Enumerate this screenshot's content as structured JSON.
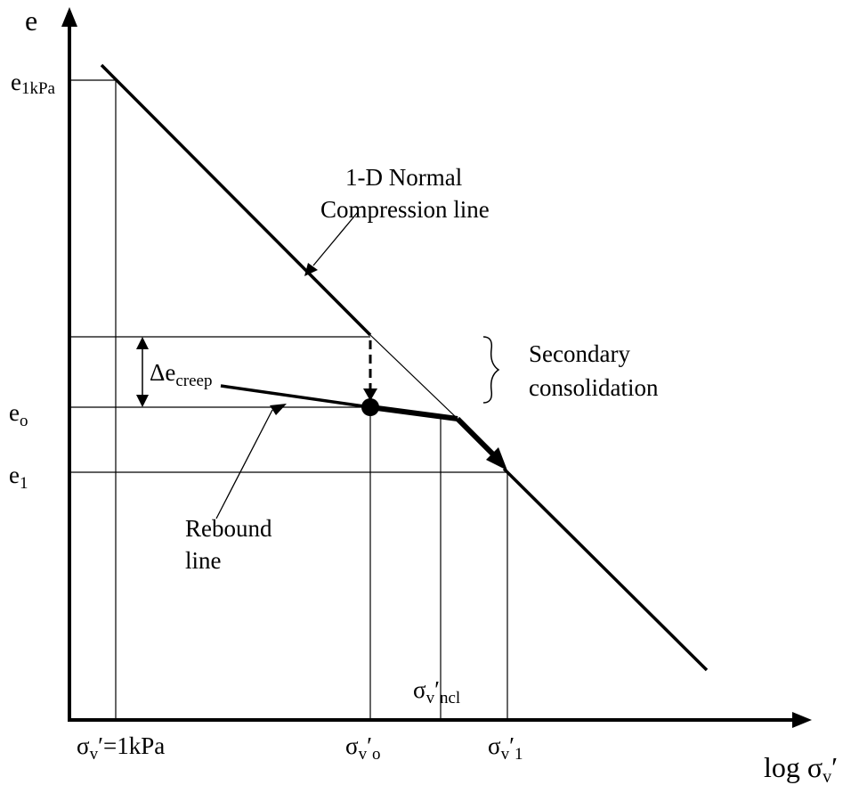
{
  "axes": {
    "y_label": "e",
    "x_label_prefix": "log",
    "x_label_sigma": "σ",
    "x_label_sub": "v",
    "x_label_prime": "′"
  },
  "y_ticks": {
    "e1kpa_main": "e",
    "e1kpa_sub": "1kPa",
    "eo_main": "e",
    "eo_sub": "o",
    "e1_main": "e",
    "e1_sub": "1"
  },
  "x_ticks": {
    "one_kpa_sigma": "σ",
    "one_kpa_sub": "v",
    "one_kpa_rest": "′=1kPa",
    "o_sigma": "σ",
    "o_sub": "v",
    "o_prime": "′",
    "o_sub2": "o",
    "one_sigma": "σ",
    "one_sub": "v",
    "one_prime": "′",
    "one_sub2": "1",
    "ncl_sigma": "σ",
    "ncl_sub": "v",
    "ncl_prime": "′",
    "ncl_sub2": "ncl"
  },
  "annotations": {
    "ncl_line1": "1-D Normal",
    "ncl_line2": "Compression line",
    "secondary_line1": "Secondary",
    "secondary_line2": "consolidation",
    "rebound_line1": "Rebound",
    "rebound_line2": "line",
    "delta_main": "Δe",
    "delta_sub": "creep"
  },
  "colors": {
    "ink": "#000000",
    "background": "#ffffff"
  }
}
